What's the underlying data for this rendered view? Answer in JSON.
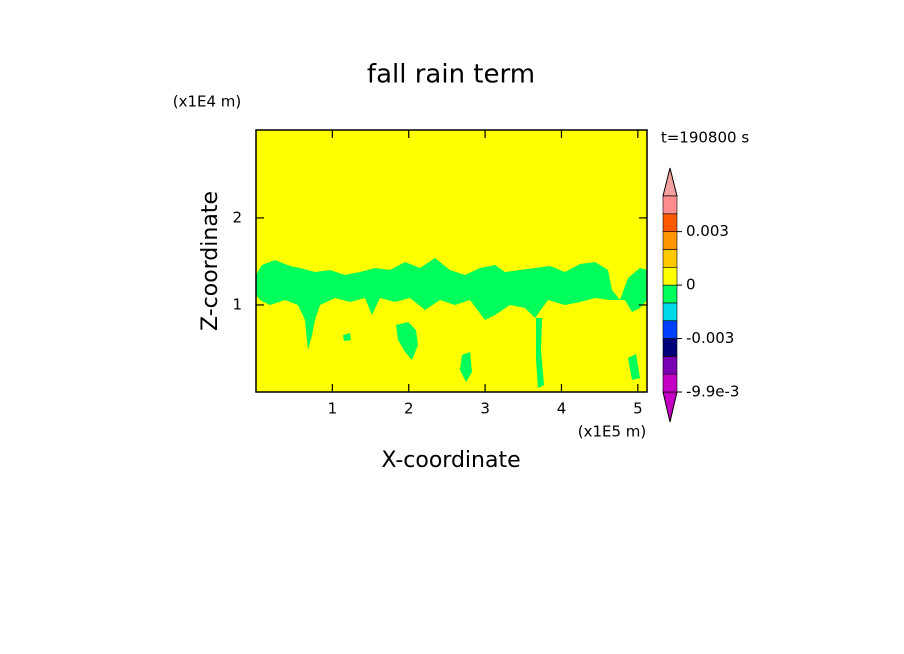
{
  "chart_data": {
    "type": "contour",
    "title": "fall rain term",
    "x_label": "X-coordinate",
    "y_label": "Z-coordinate",
    "x_unit": "(x1E5 m)",
    "y_unit": "(x1E4 m)",
    "time_label": "t=190800 s",
    "xlim": [
      0,
      5.12
    ],
    "xticks": [
      1,
      2,
      3,
      4,
      5
    ],
    "ylim": [
      0,
      3.01
    ],
    "yticks": [
      1,
      2
    ],
    "colorbar": {
      "levels": [
        -0.0099,
        -0.008,
        -0.006,
        -0.003,
        -0.002,
        -0.001,
        0,
        0.001,
        0.002,
        0.003,
        0.004,
        0.006
      ],
      "colors": [
        "#c400c4",
        "#7a00b4",
        "#00007a",
        "#0040ff",
        "#00d8e8",
        "#00ff5a",
        "#ffff00",
        "#ffc800",
        "#ff9600",
        "#ff5a00",
        "#ff8c8c"
      ],
      "under_color": "#c400c4",
      "over_color": "#f5a0a0",
      "ticks": [
        {
          "value": -0.0099,
          "label": "-9.9e-3"
        },
        -0.003,
        0,
        0.003
      ]
    }
  }
}
